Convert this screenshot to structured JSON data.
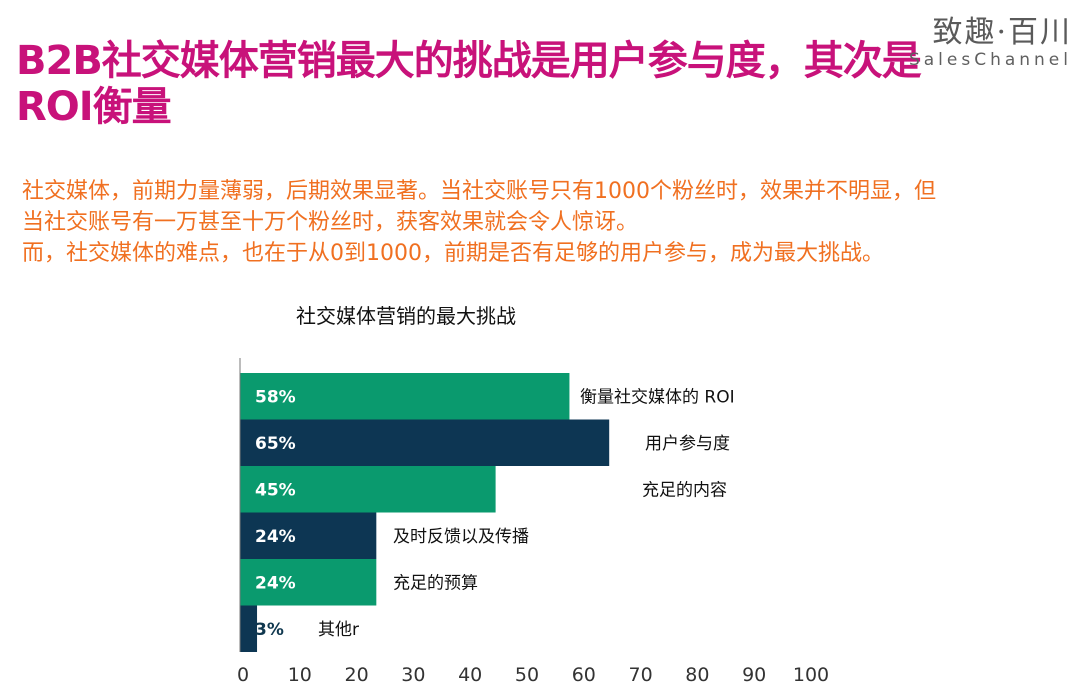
{
  "header": {
    "title": "B2B社交媒体营销最大的挑战是用户参与度，其次是ROI衡量",
    "logo_cn": "致趣·百川",
    "logo_en": "SalesChannel"
  },
  "intro": {
    "line1": "社交媒体，前期力量薄弱，后期效果显著。当社交账号只有1000个粉丝时，效果并不明显，但",
    "line2": "当社交账号有一万甚至十万个粉丝时，获客效果就会令人惊讶。",
    "line3": "而，社交媒体的难点，也在于从0到1000，前期是否有足够的用户参与，成为最大挑战。"
  },
  "colors": {
    "title": "#c8127a",
    "intro": "#f07021",
    "green": "#0a9a6e",
    "navy": "#0d3653"
  },
  "chart_data": {
    "type": "bar",
    "orientation": "horizontal",
    "title": "社交媒体营销的最大挑战",
    "categories": [
      "衡量社交媒体的 ROI",
      "用户参与度",
      "充足的内容",
      "及时反馈以及传播",
      "充足的预算",
      "其他r"
    ],
    "values": [
      58,
      65,
      45,
      24,
      24,
      3
    ],
    "value_labels": [
      "58%",
      "65%",
      "45%",
      "24%",
      "24%",
      "3%"
    ],
    "bar_colors": [
      "#0a9a6e",
      "#0d3653",
      "#0a9a6e",
      "#0d3653",
      "#0a9a6e",
      "#0d3653"
    ],
    "xlim": [
      0,
      100
    ],
    "xticks": [
      "0",
      "10",
      "20",
      "30",
      "40",
      "50",
      "60",
      "70",
      "80",
      "90",
      "100"
    ],
    "grid": false,
    "legend": "none"
  }
}
